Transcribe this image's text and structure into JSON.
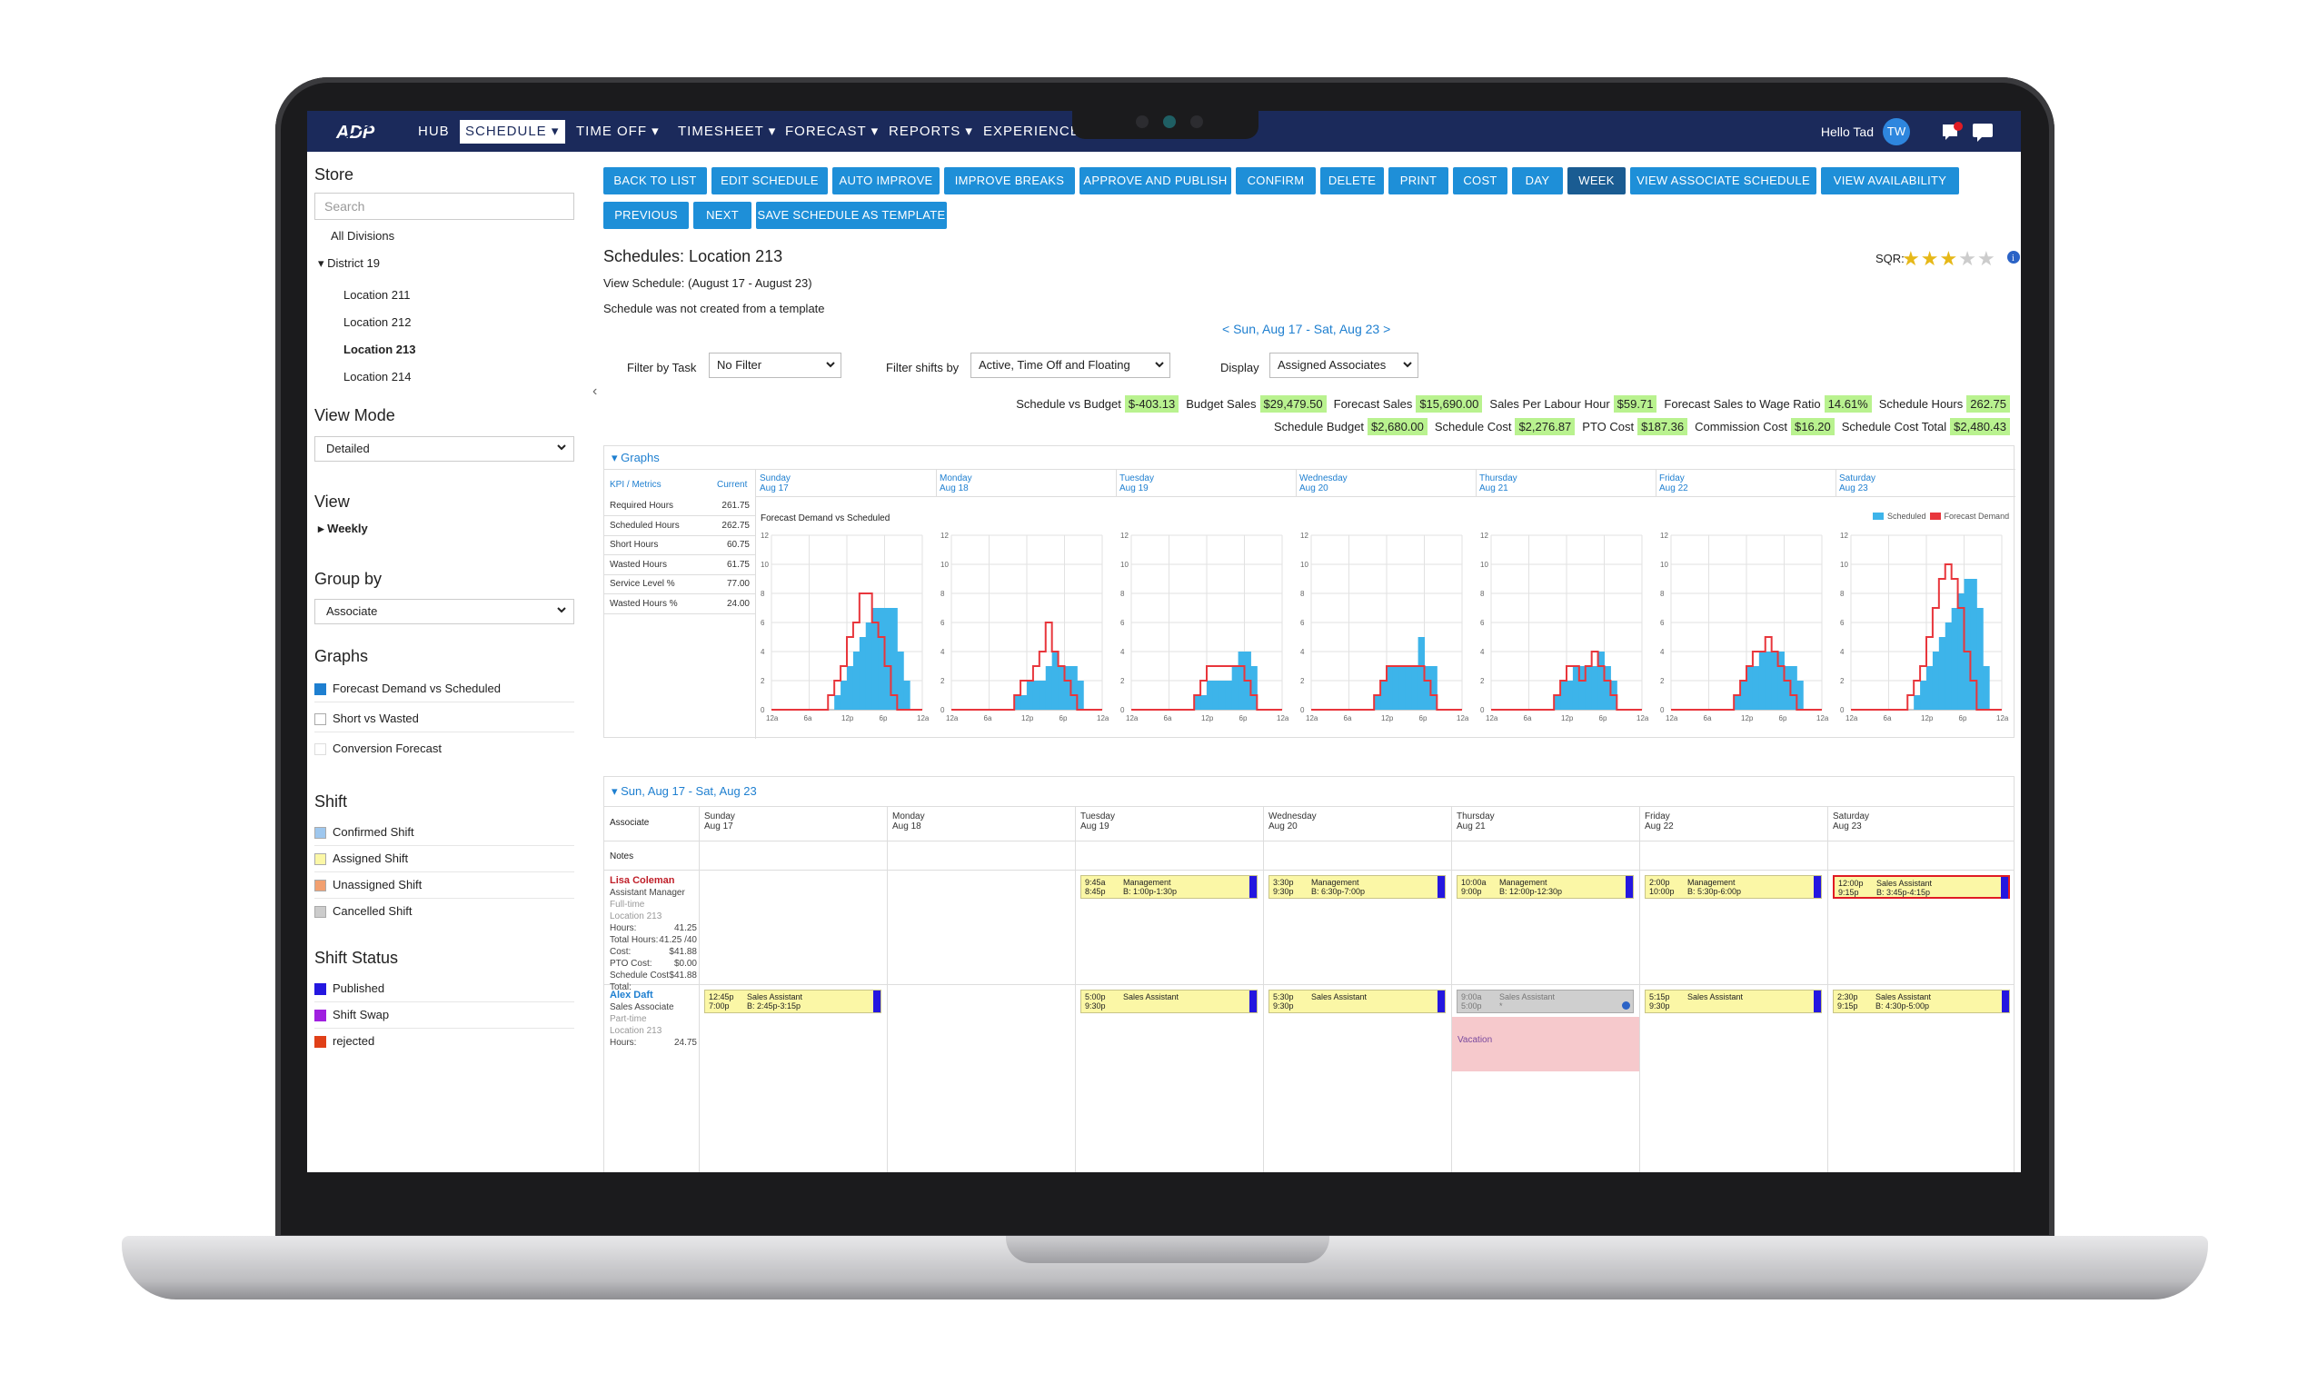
{
  "nav": {
    "items": [
      "HUB",
      "SCHEDULE",
      "TIME OFF",
      "TIMESHEET",
      "FORECAST",
      "REPORTS",
      "EXPERIENCE"
    ],
    "greeting": "Hello Tad",
    "avatar": "TW"
  },
  "sidebar": {
    "store_title": "Store",
    "search_placeholder": "Search",
    "all_divisions": "All Divisions",
    "district": "District 19",
    "locations": [
      "Location 211",
      "Location 212",
      "Location 213",
      "Location 214"
    ],
    "view_mode_title": "View Mode",
    "view_mode_value": "Detailed",
    "view_title": "View",
    "view_value": "Weekly",
    "group_by_title": "Group by",
    "group_by_value": "Associate",
    "graphs_title": "Graphs",
    "graph_options": [
      "Forecast Demand vs Scheduled",
      "Short vs Wasted",
      "Conversion Forecast"
    ],
    "shift_title": "Shift",
    "shift_types": [
      "Confirmed Shift",
      "Assigned Shift",
      "Unassigned Shift",
      "Cancelled Shift"
    ],
    "shift_colors": [
      "#9ec7ee",
      "#fbf7a6",
      "#f2a070",
      "#cccccc"
    ],
    "status_title": "Shift Status",
    "statuses": [
      "Published",
      "Shift Swap",
      "rejected"
    ],
    "status_colors": [
      "#2417e0",
      "#a020e0",
      "#e04018"
    ]
  },
  "toolbar": {
    "row1": [
      "BACK TO LIST",
      "EDIT SCHEDULE",
      "AUTO IMPROVE",
      "IMPROVE BREAKS",
      "APPROVE AND PUBLISH",
      "CONFIRM",
      "DELETE",
      "PRINT",
      "COST",
      "DAY",
      "WEEK",
      "VIEW ASSOCIATE SCHEDULE",
      "VIEW AVAILABILITY"
    ],
    "row2": [
      "PREVIOUS",
      "NEXT",
      "SAVE SCHEDULE AS TEMPLATE"
    ]
  },
  "header": {
    "title": "Schedules: Location 213",
    "view_schedule": "View Schedule: (August 17 - August 23)",
    "template_note": "Schedule was not created from a template",
    "sqr_label": "SQR:",
    "sqr_rating": 3,
    "week_nav": "< Sun, Aug 17 - Sat, Aug 23 >"
  },
  "filters": {
    "task_label": "Filter by Task",
    "task_value": "No Filter",
    "shifts_label": "Filter shifts by",
    "shifts_value": "Active, Time Off and Floating",
    "display_label": "Display",
    "display_value": "Assigned Associates"
  },
  "kpis": {
    "row1": [
      {
        "label": "Schedule vs Budget",
        "value": "$-403.13"
      },
      {
        "label": "Budget Sales",
        "value": "$29,479.50"
      },
      {
        "label": "Forecast Sales",
        "value": "$15,690.00"
      },
      {
        "label": "Sales Per Labour Hour",
        "value": "$59.71"
      },
      {
        "label": "Forecast Sales to Wage Ratio",
        "value": "14.61%"
      },
      {
        "label": "Schedule Hours",
        "value": "262.75"
      }
    ],
    "row2": [
      {
        "label": "Schedule Budget",
        "value": "$2,680.00"
      },
      {
        "label": "Schedule Cost",
        "value": "$2,276.87"
      },
      {
        "label": "PTO Cost",
        "value": "$187.36"
      },
      {
        "label": "Commission Cost",
        "value": "$16.20"
      },
      {
        "label": "Schedule Cost Total",
        "value": "$2,480.43"
      }
    ]
  },
  "graphs": {
    "section_title": "Graphs",
    "kpi_header": "KPI / Metrics",
    "current_header": "Current",
    "metrics": [
      {
        "name": "Required Hours",
        "value": "261.75"
      },
      {
        "name": "Scheduled Hours",
        "value": "262.75"
      },
      {
        "name": "Short Hours",
        "value": "60.75"
      },
      {
        "name": "Wasted Hours",
        "value": "61.75"
      },
      {
        "name": "Service Level %",
        "value": "77.00"
      },
      {
        "name": "Wasted Hours %",
        "value": "24.00"
      }
    ],
    "days": [
      {
        "day": "Sunday",
        "date": "Aug 17"
      },
      {
        "day": "Monday",
        "date": "Aug 18"
      },
      {
        "day": "Tuesday",
        "date": "Aug 19"
      },
      {
        "day": "Wednesday",
        "date": "Aug 20"
      },
      {
        "day": "Thursday",
        "date": "Aug 21"
      },
      {
        "day": "Friday",
        "date": "Aug 22"
      },
      {
        "day": "Saturday",
        "date": "Aug 23"
      }
    ],
    "chart_title": "Forecast Demand vs Scheduled",
    "legend": [
      "Scheduled",
      "Forecast Demand"
    ]
  },
  "chart_data": {
    "type": "bar",
    "title": "Forecast Demand vs Scheduled",
    "ylim": [
      0,
      12
    ],
    "yticks": [
      "0",
      "2",
      "4",
      "6",
      "8",
      "10",
      "12"
    ],
    "xticks": [
      "12a",
      "6a",
      "12p",
      "6p",
      "12a"
    ],
    "series": [
      {
        "name": "Scheduled",
        "color": "#3db4ea",
        "values_by_day": [
          [
            0,
            0,
            0,
            0,
            0,
            0,
            0,
            0,
            0,
            0,
            1,
            2,
            3,
            4,
            5,
            6,
            7,
            7,
            7,
            7,
            4,
            2,
            0,
            0
          ],
          [
            0,
            0,
            0,
            0,
            0,
            0,
            0,
            0,
            0,
            0,
            1,
            1,
            2,
            2,
            2,
            3,
            4,
            3,
            3,
            3,
            2,
            0,
            0,
            0
          ],
          [
            0,
            0,
            0,
            0,
            0,
            0,
            0,
            0,
            0,
            0,
            1,
            1,
            2,
            2,
            2,
            2,
            3,
            4,
            4,
            3,
            0,
            0,
            0,
            0
          ],
          [
            0,
            0,
            0,
            0,
            0,
            0,
            0,
            0,
            0,
            0,
            1,
            2,
            3,
            3,
            3,
            3,
            3,
            5,
            3,
            3,
            0,
            0,
            0,
            0
          ],
          [
            0,
            0,
            0,
            0,
            0,
            0,
            0,
            0,
            0,
            0,
            1,
            2,
            2,
            3,
            3,
            3,
            3,
            4,
            3,
            2,
            0,
            0,
            0,
            0
          ],
          [
            0,
            0,
            0,
            0,
            0,
            0,
            0,
            0,
            0,
            0,
            1,
            2,
            3,
            3,
            4,
            4,
            4,
            4,
            3,
            3,
            2,
            0,
            0,
            0
          ],
          [
            0,
            0,
            0,
            0,
            0,
            0,
            0,
            0,
            0,
            0,
            1,
            2,
            3,
            4,
            5,
            6,
            7,
            8,
            9,
            9,
            7,
            3,
            0,
            0
          ]
        ]
      },
      {
        "name": "Forecast Demand",
        "color": "#e8363c",
        "values_by_day": [
          [
            0,
            0,
            0,
            0,
            0,
            0,
            0,
            0,
            0,
            1,
            2,
            3,
            5,
            6,
            8,
            8,
            6,
            5,
            3,
            1,
            0,
            0,
            0,
            0
          ],
          [
            0,
            0,
            0,
            0,
            0,
            0,
            0,
            0,
            0,
            0,
            1,
            2,
            2,
            3,
            4,
            6,
            4,
            3,
            2,
            1,
            0,
            0,
            0,
            0
          ],
          [
            0,
            0,
            0,
            0,
            0,
            0,
            0,
            0,
            0,
            0,
            1,
            2,
            3,
            3,
            3,
            3,
            3,
            3,
            2,
            1,
            0,
            0,
            0,
            0
          ],
          [
            0,
            0,
            0,
            0,
            0,
            0,
            0,
            0,
            0,
            0,
            1,
            2,
            3,
            3,
            3,
            3,
            3,
            3,
            2,
            1,
            0,
            0,
            0,
            0
          ],
          [
            0,
            0,
            0,
            0,
            0,
            0,
            0,
            0,
            0,
            0,
            1,
            2,
            3,
            3,
            2,
            3,
            4,
            3,
            2,
            1,
            0,
            0,
            0,
            0
          ],
          [
            0,
            0,
            0,
            0,
            0,
            0,
            0,
            0,
            0,
            0,
            1,
            2,
            3,
            4,
            4,
            5,
            4,
            3,
            2,
            1,
            0,
            0,
            0,
            0
          ],
          [
            0,
            0,
            0,
            0,
            0,
            0,
            0,
            0,
            0,
            1,
            2,
            3,
            5,
            7,
            9,
            10,
            9,
            7,
            4,
            2,
            0,
            0,
            0,
            0
          ]
        ]
      }
    ]
  },
  "schedule": {
    "section_title": "Sun, Aug 17 - Sat, Aug 23",
    "associate_header": "Associate",
    "notes_label": "Notes",
    "employees": [
      {
        "name": "Lisa Coleman",
        "title": "Assistant Manager",
        "type": "Full-time",
        "location": "Location 213",
        "stats": [
          {
            "label": "Hours:",
            "value": "41.25"
          },
          {
            "label": "Total Hours:",
            "value": "41.25 /40"
          },
          {
            "label": "Cost:",
            "value": "$41.88"
          },
          {
            "label": "PTO Cost:",
            "value": "$0.00"
          },
          {
            "label": "Schedule Cost Total:",
            "value": "$41.88"
          }
        ],
        "shifts": [
          null,
          null,
          {
            "start": "9:45a",
            "end": "8:45p",
            "role": "Management",
            "break": "B: 1:00p-1:30p"
          },
          {
            "start": "3:30p",
            "end": "9:30p",
            "role": "Management",
            "break": "B: 6:30p-7:00p"
          },
          {
            "start": "10:00a",
            "end": "9:00p",
            "role": "Management",
            "break": "B: 12:00p-12:30p"
          },
          {
            "start": "2:00p",
            "end": "10:00p",
            "role": "Management",
            "break": "B: 5:30p-6:00p"
          },
          {
            "start": "12:00p",
            "end": "9:15p",
            "role": "Sales Assistant",
            "break": "B: 3:45p-4:15p"
          }
        ]
      },
      {
        "name": "Alex Daft",
        "title": "Sales Associate",
        "type": "Part-time",
        "location": "Location 213",
        "stats": [
          {
            "label": "Hours:",
            "value": "24.75"
          }
        ],
        "shifts": [
          {
            "start": "12:45p",
            "end": "7:00p",
            "role": "Sales Assistant",
            "break": "B: 2:45p-3:15p"
          },
          null,
          {
            "start": "5:00p",
            "end": "9:30p",
            "role": "Sales Assistant",
            "break": ""
          },
          {
            "start": "5:30p",
            "end": "9:30p",
            "role": "Sales Assistant",
            "break": ""
          },
          {
            "start": "9:00a",
            "end": "5:00p",
            "role": "Sales Assistant",
            "break": "*"
          },
          {
            "start": "5:15p",
            "end": "9:30p",
            "role": "Sales Assistant",
            "break": ""
          },
          {
            "start": "2:30p",
            "end": "9:15p",
            "role": "Sales Assistant",
            "break": "B: 4:30p-5:00p"
          }
        ],
        "vacation_label": "Vacation"
      }
    ]
  }
}
